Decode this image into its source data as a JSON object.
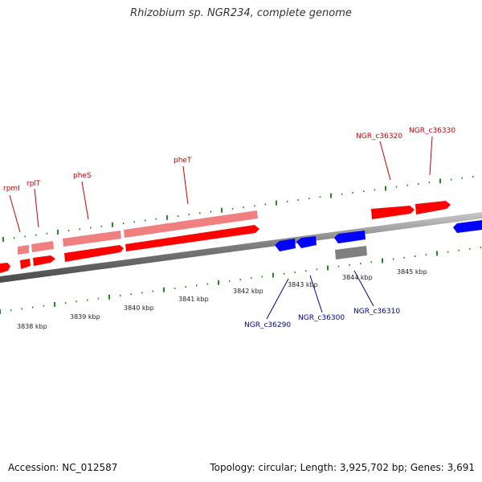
{
  "header": {
    "title": "Rhizobium sp. NGR234, complete genome"
  },
  "footer": {
    "accession": "Accession: NC_012587",
    "summary": "Topology: circular; Length: 3,925,702 bp; Genes: 3,691"
  },
  "colors": {
    "forward_gene": "#ff0000",
    "forward_gene_light": "#f08080",
    "reverse_gene": "#0000ff",
    "pseudo_gene": "#808080",
    "tick": "#228b22",
    "forward_label": "#cc0000",
    "reverse_label": "#000099",
    "backbone": "#7f7f7f"
  },
  "scale": {
    "ticks_kbp": [
      "3838 kbp",
      "3839 kbp",
      "3840 kbp",
      "3841 kbp",
      "3842 kbp",
      "3843 kbp",
      "3844 kbp",
      "3845 kbp"
    ]
  },
  "genes": {
    "forward_labels": [
      "rpmI",
      "rplT",
      "pheS",
      "pheT",
      "NGR_c36320",
      "NGR_c36330"
    ],
    "reverse_labels": [
      "NGR_c36290",
      "NGR_c36300",
      "NGR_c36310"
    ]
  }
}
